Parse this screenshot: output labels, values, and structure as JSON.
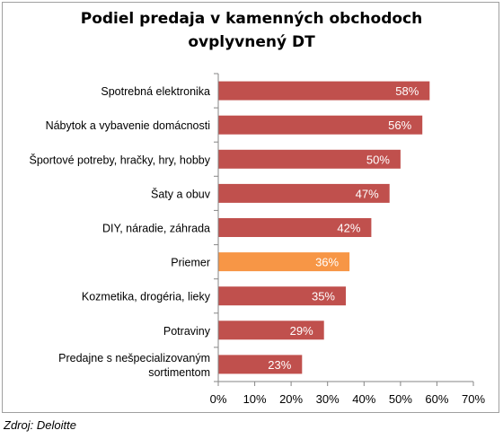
{
  "chart_data": {
    "type": "bar",
    "orientation": "horizontal",
    "title": [
      "Podiel predaja v kamenných obchodoch",
      "ovplyvnený DT"
    ],
    "categories": [
      [
        "Spotrebná elektronika"
      ],
      [
        "Nábytok a vybavenie domácnosti"
      ],
      [
        "Športové potreby, hračky, hry, hobby"
      ],
      [
        "Šaty a obuv"
      ],
      [
        "DIY, náradie, záhrada"
      ],
      [
        "Priemer"
      ],
      [
        "Kozmetika, drogéria, lieky"
      ],
      [
        "Potraviny"
      ],
      [
        "Predajne s nešpecializovaným",
        "sortimentom"
      ]
    ],
    "values": [
      58,
      56,
      50,
      47,
      42,
      36,
      35,
      29,
      23
    ],
    "data_labels": [
      "58%",
      "56%",
      "50%",
      "47%",
      "42%",
      "36%",
      "35%",
      "29%",
      "23%"
    ],
    "xlim": [
      0,
      70
    ],
    "x_ticks": [
      0,
      10,
      20,
      30,
      40,
      50,
      60,
      70
    ],
    "x_tick_labels": [
      "0%",
      "10%",
      "20%",
      "30%",
      "40%",
      "50%",
      "60%",
      "70%"
    ],
    "grid": false,
    "legend": "none",
    "colors": {
      "bar": "#c0504d",
      "highlight": "#f79646",
      "label": "#ffffff",
      "axis": "#868686"
    },
    "highlight_index": 5
  },
  "source_note": "Zdroj: Deloitte"
}
